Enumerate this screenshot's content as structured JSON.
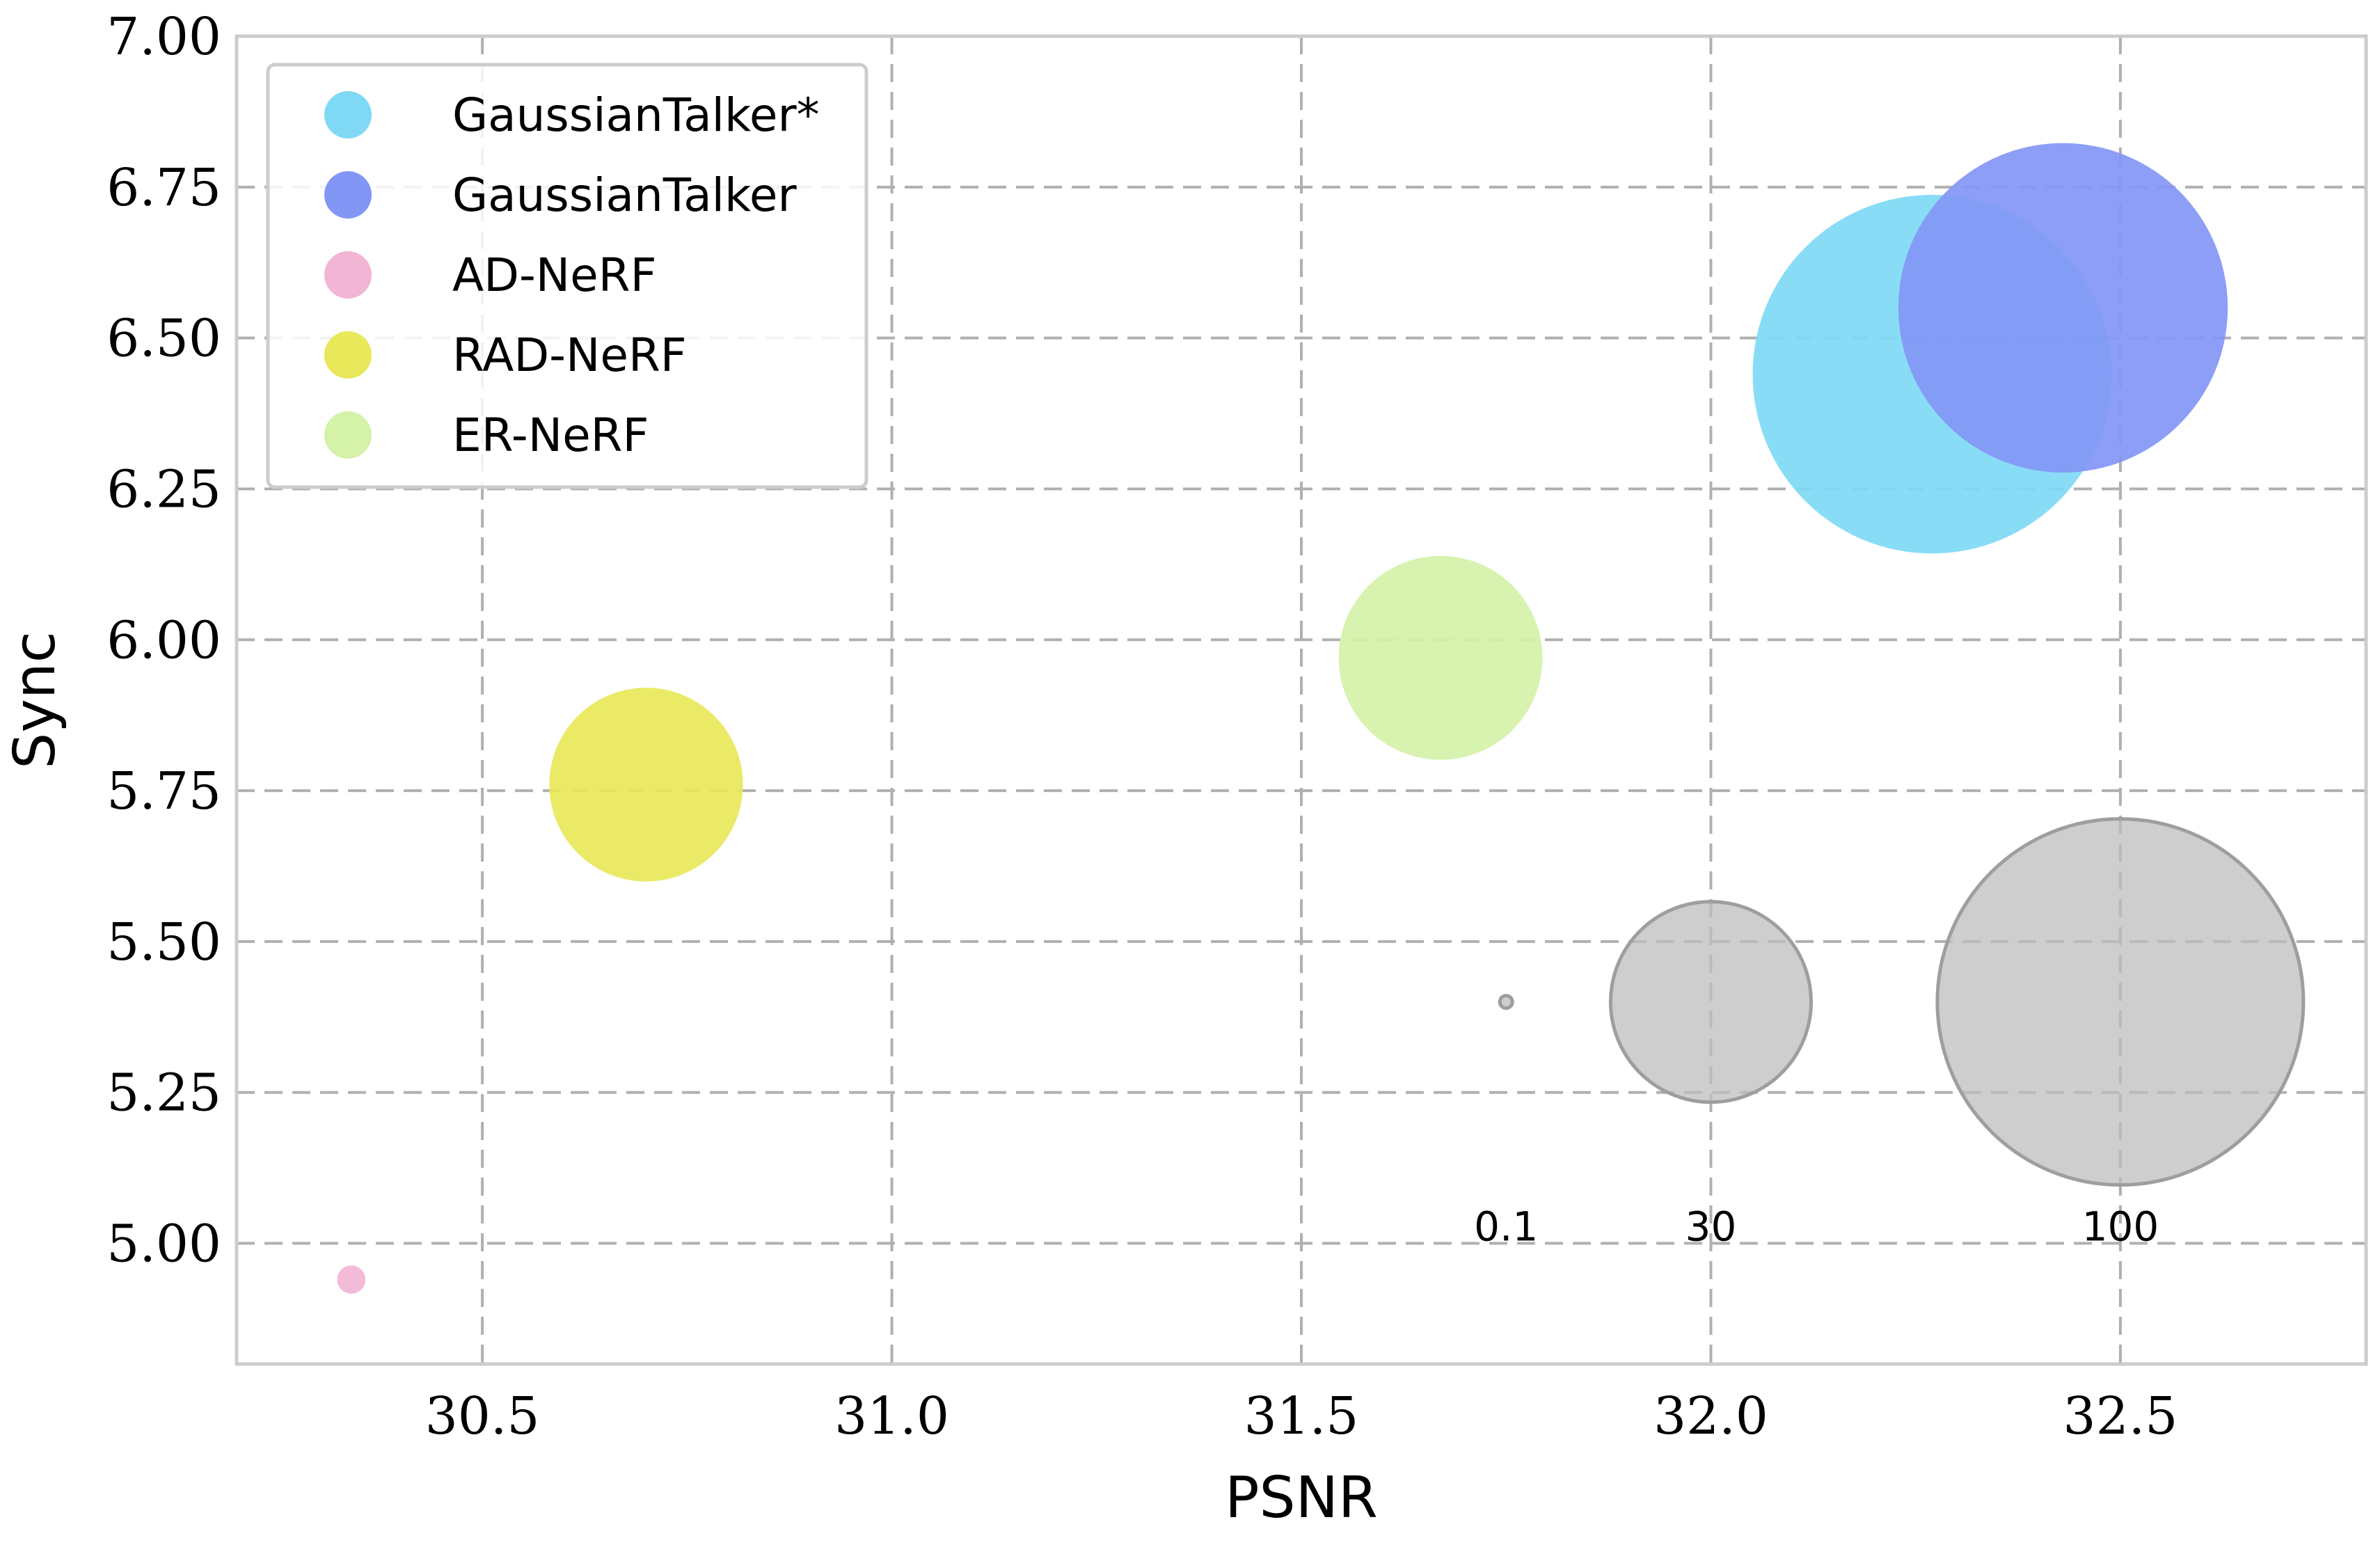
{
  "chart_data": {
    "type": "scatter",
    "xlabel": "PSNR",
    "ylabel": "Sync",
    "xlim": [
      30.2,
      32.8
    ],
    "ylim": [
      4.8,
      7.0
    ],
    "xticks": [
      30.5,
      31.0,
      31.5,
      32.0,
      32.5
    ],
    "xtick_labels": [
      "30.5",
      "31.0",
      "31.5",
      "32.0",
      "32.5"
    ],
    "yticks": [
      5.0,
      5.25,
      5.5,
      5.75,
      6.0,
      6.25,
      6.5,
      6.75,
      7.0
    ],
    "ytick_labels": [
      "5.00",
      "5.25",
      "5.50",
      "5.75",
      "6.00",
      "6.25",
      "6.50",
      "6.75",
      "7.00"
    ],
    "grid": true,
    "legend_position": "top-left",
    "series": [
      {
        "name": "GaussianTalker*",
        "color": "#7fd9f5",
        "x": 32.27,
        "y": 6.44,
        "size": 96
      },
      {
        "name": "GaussianTalker",
        "color": "#8296f5",
        "x": 32.43,
        "y": 6.55,
        "size": 81
      },
      {
        "name": "AD-NeRF",
        "color": "#f2b5d4",
        "x": 30.34,
        "y": 4.94,
        "size": 0.6
      },
      {
        "name": "RAD-NeRF",
        "color": "#e8e85a",
        "x": 30.7,
        "y": 5.76,
        "size": 28
      },
      {
        "name": "ER-NeRF",
        "color": "#d4f2a8",
        "x": 31.67,
        "y": 5.97,
        "size": 31
      }
    ],
    "size_reference": [
      {
        "label": "0.1",
        "x": 31.75,
        "y": 5.4,
        "size": 0.1
      },
      {
        "label": "30",
        "x": 32.0,
        "y": 5.4,
        "size": 30
      },
      {
        "label": "100",
        "x": 32.5,
        "y": 5.4,
        "size": 100
      }
    ],
    "size_reference_color": "#bdbdbd"
  }
}
